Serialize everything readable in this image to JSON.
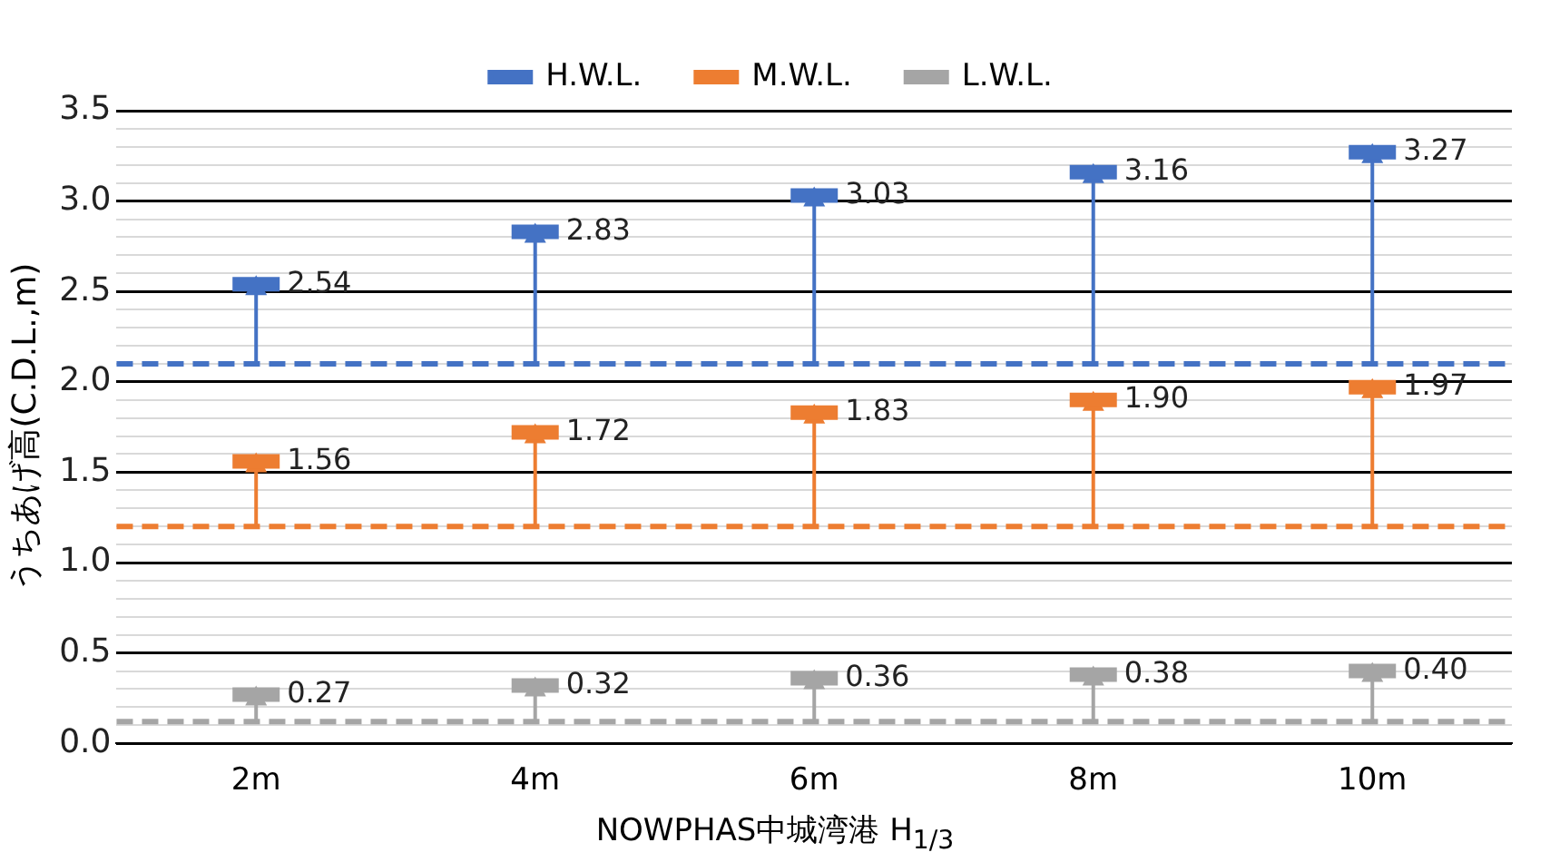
{
  "chart_data": {
    "type": "scatter",
    "ylabel": "うちあげ高(C.D.L.,m)",
    "xlabel": "NOWPHAS中城湾港 H$_{1/3}$",
    "categories": [
      "2m",
      "4m",
      "6m",
      "8m",
      "10m"
    ],
    "series": [
      {
        "name": "H.W.L.",
        "color": "#4472c4",
        "values": [
          2.54,
          2.83,
          3.03,
          3.16,
          3.27
        ],
        "errors": [
          [
            2.1,
            2.54
          ],
          [
            2.1,
            2.83
          ],
          [
            2.1,
            3.03
          ],
          [
            2.1,
            3.16
          ],
          [
            2.1,
            3.27
          ]
        ],
        "value_labels": [
          "2.54",
          "2.83",
          "3.03",
          "3.16",
          "3.27"
        ]
      },
      {
        "name": "M.W.L.",
        "color": "#ed7d31",
        "values": [
          1.56,
          1.72,
          1.83,
          1.9,
          1.97
        ],
        "errors": [
          [
            1.2,
            1.56
          ],
          [
            1.2,
            1.72
          ],
          [
            1.2,
            1.83
          ],
          [
            1.2,
            1.9
          ],
          [
            1.2,
            1.97
          ]
        ],
        "value_labels": [
          "1.56",
          "1.72",
          "1.83",
          "1.90",
          "1.97"
        ]
      },
      {
        "name": "L.W.L.",
        "color": "#a5a5a5",
        "values": [
          0.27,
          0.32,
          0.36,
          0.38,
          0.4
        ],
        "errors": [
          [
            0.12,
            0.27
          ],
          [
            0.12,
            0.32
          ],
          [
            0.12,
            0.36
          ],
          [
            0.12,
            0.38
          ],
          [
            0.12,
            0.4
          ]
        ],
        "value_labels": [
          "0.27",
          "0.32",
          "0.36",
          "0.38",
          "0.40"
        ]
      }
    ],
    "ref_lines": [
      {
        "axis": "y",
        "value": 2.1,
        "color": "#4472c4",
        "line_style": "dashed"
      },
      {
        "axis": "y",
        "value": 1.2,
        "color": "#ed7d31",
        "line_style": "dashed"
      },
      {
        "axis": "y",
        "value": 0.12,
        "color": "#a5a5a5",
        "line_style": "dashed"
      }
    ],
    "ylim": [
      0,
      3.5
    ],
    "yticks": [
      {
        "value": 0,
        "label": "0.0"
      },
      {
        "value": 0.1,
        "label": null
      },
      {
        "value": 0.2,
        "label": null
      },
      {
        "value": 0.3,
        "label": null
      },
      {
        "value": 0.4,
        "label": null
      },
      0.5,
      {
        "value": 0.6,
        "label": null
      },
      {
        "value": 0.7,
        "label": null
      },
      {
        "value": 0.8,
        "label": null
      },
      {
        "value": 0.9,
        "label": null
      },
      {
        "value": 1,
        "label": "1.0"
      },
      {
        "value": 1.1,
        "label": null
      },
      {
        "value": 1.2,
        "label": null
      },
      {
        "value": 1.3,
        "label": null
      },
      {
        "value": 1.4,
        "label": null
      },
      1.5,
      {
        "value": 1.6,
        "label": null
      },
      {
        "value": 1.7,
        "label": null
      },
      {
        "value": 1.8,
        "label": null
      },
      {
        "value": 1.9,
        "label": null
      },
      {
        "value": 2,
        "label": "2.0"
      },
      {
        "value": 2.1,
        "label": null
      },
      {
        "value": 2.2,
        "label": null
      },
      {
        "value": 2.3,
        "label": null
      },
      {
        "value": 2.4,
        "label": null
      },
      2.5,
      {
        "value": 2.6,
        "label": null
      },
      {
        "value": 2.7,
        "label": null
      },
      {
        "value": 2.8,
        "label": null
      },
      {
        "value": 2.9,
        "label": null
      },
      {
        "value": 3,
        "label": "3.0"
      },
      {
        "value": 3.1,
        "label": null
      },
      {
        "value": 3.2,
        "label": null
      },
      {
        "value": 3.3,
        "label": null
      },
      {
        "value": 3.4,
        "label": null
      },
      3.5
    ],
    "grid": "y",
    "legend": "top"
  }
}
